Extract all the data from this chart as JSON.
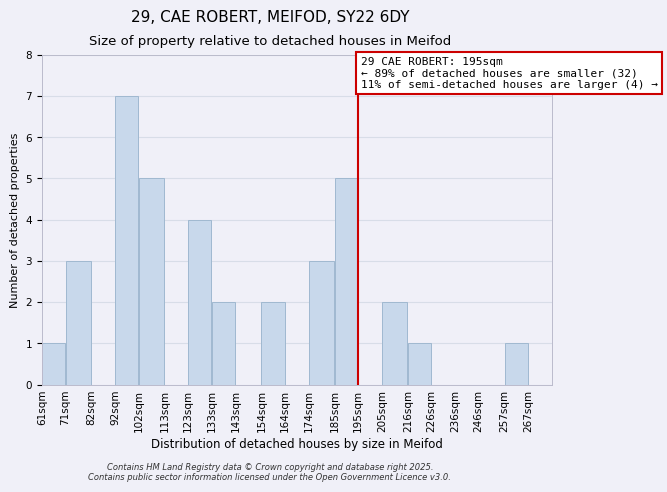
{
  "title": "29, CAE ROBERT, MEIFOD, SY22 6DY",
  "subtitle": "Size of property relative to detached houses in Meifod",
  "xlabel": "Distribution of detached houses by size in Meifod",
  "ylabel": "Number of detached properties",
  "bar_color": "#c8d8eb",
  "bar_edge_color": "#a0b8d0",
  "bins": [
    61,
    71,
    82,
    92,
    102,
    113,
    123,
    133,
    143,
    154,
    164,
    174,
    185,
    195,
    205,
    216,
    226,
    236,
    246,
    257,
    267,
    277
  ],
  "bin_labels": [
    "61sqm",
    "71sqm",
    "82sqm",
    "92sqm",
    "102sqm",
    "113sqm",
    "123sqm",
    "133sqm",
    "143sqm",
    "154sqm",
    "164sqm",
    "174sqm",
    "185sqm",
    "195sqm",
    "205sqm",
    "216sqm",
    "226sqm",
    "236sqm",
    "246sqm",
    "257sqm",
    "267sqm"
  ],
  "counts": [
    1,
    3,
    0,
    7,
    5,
    0,
    4,
    2,
    0,
    2,
    0,
    3,
    5,
    0,
    2,
    1,
    0,
    0,
    0,
    1,
    0
  ],
  "vline_x": 195,
  "vline_color": "#cc0000",
  "annotation_line1": "29 CAE ROBERT: 195sqm",
  "annotation_line2": "← 89% of detached houses are smaller (32)",
  "annotation_line3": "11% of semi-detached houses are larger (4) →",
  "annotation_box_color": "#ffffff",
  "annotation_box_edge_color": "#cc0000",
  "ylim": [
    0,
    8
  ],
  "yticks": [
    0,
    1,
    2,
    3,
    4,
    5,
    6,
    7,
    8
  ],
  "grid_color": "#d8dde8",
  "background_color": "#f0f0f8",
  "footer_line1": "Contains HM Land Registry data © Crown copyright and database right 2025.",
  "footer_line2": "Contains public sector information licensed under the Open Government Licence v3.0.",
  "title_fontsize": 11,
  "subtitle_fontsize": 9.5,
  "xlabel_fontsize": 8.5,
  "ylabel_fontsize": 8,
  "tick_fontsize": 7.5,
  "annotation_fontsize": 8,
  "footer_fontsize": 6
}
